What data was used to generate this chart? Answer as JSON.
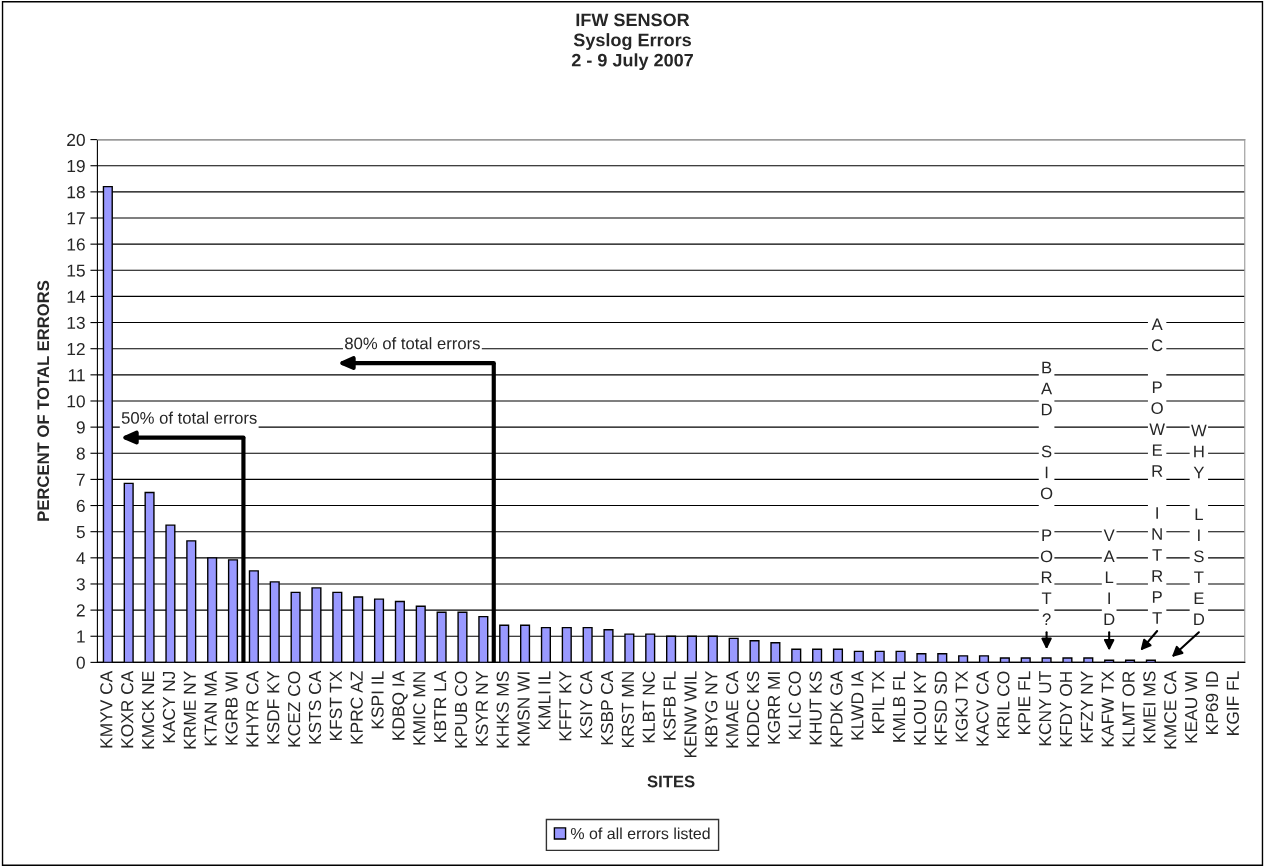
{
  "chart_data": {
    "type": "bar",
    "title": "IFW SENSOR\nSyslog Errors\n2 - 9 July 2007",
    "xlabel": "SITES",
    "ylabel": "PERCENT OF TOTAL ERRORS",
    "categories": [
      "KMYV CA",
      "KOXR CA",
      "KMCK NE",
      "KACY NJ",
      "KRME NY",
      "KTAN MA",
      "KGRB WI",
      "KHYR CA",
      "KSDF KY",
      "KCEZ CO",
      "KSTS CA",
      "KFST TX",
      "KPRC AZ",
      "KSPI IL",
      "KDBQ IA",
      "KMIC MN",
      "KBTR LA",
      "KPUB CO",
      "KSYR NY",
      "KHKS MS",
      "KMSN WI",
      "KMLI IL",
      "KFFT KY",
      "KSIY CA",
      "KSBP CA",
      "KRST MN",
      "KLBT NC",
      "KSFB FL",
      "KENW WIL",
      "KBYG NY",
      "KMAE CA",
      "KDDC KS",
      "KGRR MI",
      "KLIC CO",
      "KHUT KS",
      "KPDK GA",
      "KLWD IA",
      "KPIL TX",
      "KMLB FL",
      "KLOU KY",
      "KFSD SD",
      "KGKJ TX",
      "KACV CA",
      "KRIL CO",
      "KPIE FL",
      "KCNY UT",
      "KFDY OH",
      "KFZY NY",
      "KAFW TX",
      "KLMT OR",
      "KMEI MS",
      "KMCE CA",
      "KEAU WI",
      "KP69 ID",
      "KGIF FL"
    ],
    "series": [
      {
        "name": "% of all errors listed",
        "color": "#9999ff",
        "values": [
          18.2,
          6.85,
          6.5,
          5.25,
          4.65,
          4.0,
          3.92,
          3.5,
          3.08,
          2.68,
          2.85,
          2.68,
          2.5,
          2.42,
          2.33,
          2.15,
          1.92,
          1.92,
          1.75,
          1.42,
          1.42,
          1.33,
          1.33,
          1.33,
          1.25,
          1.08,
          1.08,
          1.0,
          1.0,
          1.0,
          0.92,
          0.83,
          0.75,
          0.5,
          0.5,
          0.5,
          0.42,
          0.42,
          0.42,
          0.33,
          0.33,
          0.25,
          0.25,
          0.17,
          0.17,
          0.17,
          0.17,
          0.17,
          0.08,
          0.08,
          0.08,
          0,
          0,
          0,
          0
        ]
      }
    ],
    "ylim": [
      0,
      20
    ],
    "yticks": [
      0,
      1,
      2,
      3,
      4,
      5,
      6,
      7,
      8,
      9,
      10,
      11,
      12,
      13,
      14,
      15,
      16,
      17,
      18,
      19,
      20
    ],
    "grid": "y",
    "legend": "bottom",
    "annotations": [
      "50% of total errors",
      "80% of total errors",
      "B\nA\nD\n\nS\nI\nO\n\nP\nO\nR\nT\n?",
      "V\nA\nL\nI\nD",
      "A\nC\n\nP\nO\nW\nE\nR\n\nI\nN\nT\nR\nP\nT",
      "W\nH\nY\n\nL\nI\nS\nT\nE\nD"
    ]
  }
}
